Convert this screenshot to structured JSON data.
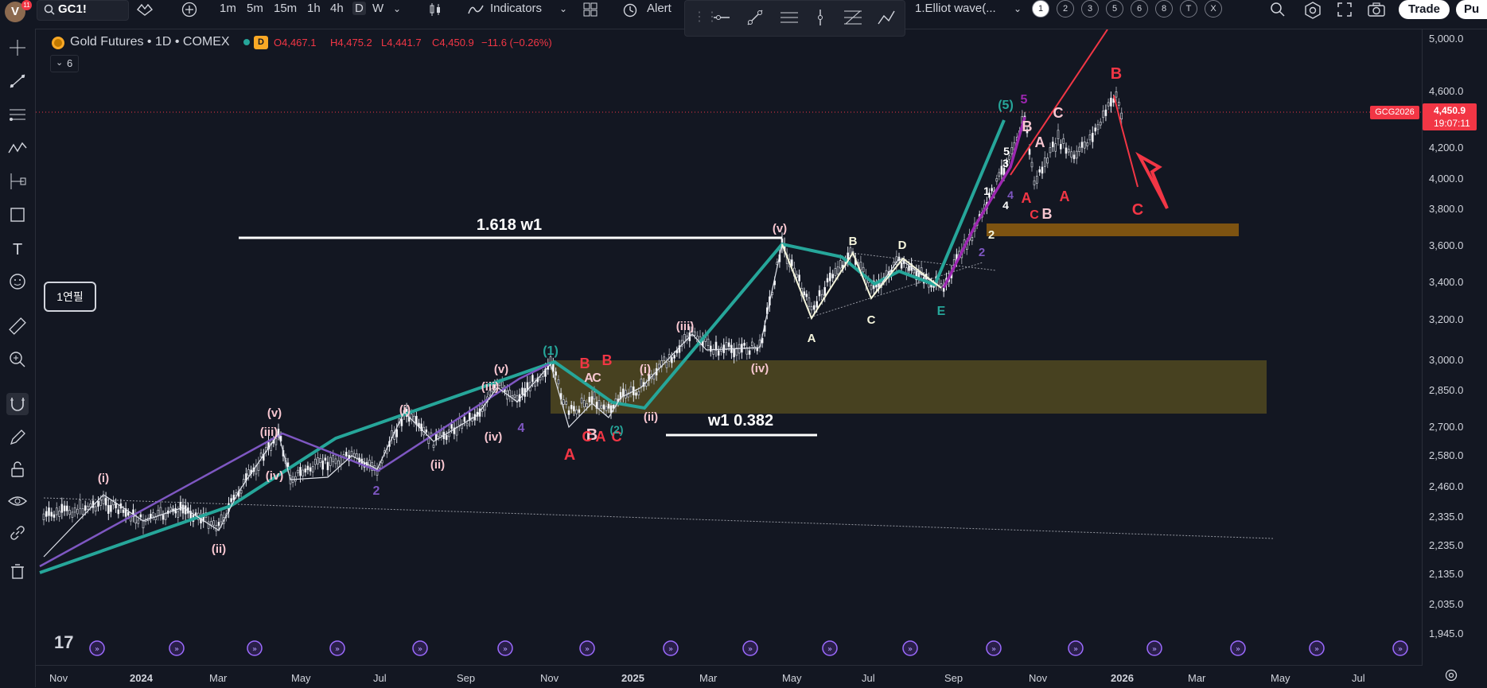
{
  "topbar": {
    "avatar_letter": "V",
    "avatar_badge": "11",
    "symbol": "GC1!",
    "intervals": [
      "1m",
      "5m",
      "15m",
      "1h",
      "4h",
      "D",
      "W"
    ],
    "active_interval": "D",
    "indicators_label": "Indicators",
    "alert_label": "Alert",
    "template_name": "1.Elliot wave(...",
    "numbered_slots": [
      "1",
      "2",
      "3",
      "5",
      "6",
      "8",
      "T",
      "X"
    ],
    "trade_label": "Trade",
    "publish_label": "Pu"
  },
  "legend": {
    "title": "Gold Futures • 1D • COMEX",
    "open": "O4,467.1",
    "high": "H4,475.2",
    "low": "L4,441.7",
    "close": "C4,450.9",
    "change": "−11.6 (−0.26%)",
    "indicator_count": "6"
  },
  "price_axis": {
    "labels": [
      "5,000.0",
      "4,600.0",
      "4,200.0",
      "4,000.0",
      "3,800.0",
      "3,600.0",
      "3,400.0",
      "3,200.0",
      "3,000.0",
      "2,850.0",
      "2,700.0",
      "2,580.0",
      "2,460.0",
      "2,335.0",
      "2,235.0",
      "2,135.0",
      "2,035.0",
      "1,945.0"
    ],
    "current_price": "4,450.9",
    "countdown": "19:07:11",
    "symbol_tag": "GCG2026"
  },
  "time_axis": {
    "labels": [
      "Nov",
      "2024",
      "Mar",
      "May",
      "Jul",
      "Sep",
      "Nov",
      "2025",
      "Mar",
      "May",
      "Jul",
      "Sep",
      "Nov",
      "2026",
      "Mar",
      "May",
      "Jul"
    ],
    "bold_labels": [
      "2024",
      "2025",
      "2026"
    ]
  },
  "annotations": {
    "fib_upper": "1.618 w1",
    "fib_lower": "w1 0.382",
    "note_box": "1연필",
    "wave_labels": [
      "(i)",
      "(ii)",
      "(iii)",
      "(iv)",
      "(v)",
      "2",
      "4",
      "A",
      "B",
      "C",
      "D",
      "E",
      "(5)",
      "5",
      "3",
      "1",
      "(1)",
      "(2)"
    ]
  },
  "colors": {
    "background": "#131722",
    "wave_green": "#26a69a",
    "wave_purple": "#7e57c2",
    "label_red": "#f23645",
    "label_pink": "#f7c6d0",
    "zone_olive": "#5a5020",
    "zone_orange": "#8a5a10"
  }
}
